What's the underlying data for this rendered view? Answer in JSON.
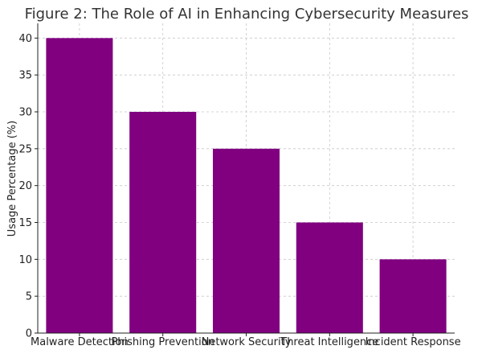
{
  "chart_data": {
    "type": "bar",
    "title": "Figure 2: The Role of AI in Enhancing Cybersecurity Measures",
    "xlabel": "",
    "ylabel": "Usage Percentage (%)",
    "categories": [
      "Malware Detection",
      "Phishing Prevention",
      "Network Security",
      "Threat Intelligence",
      "Incident Response"
    ],
    "values": [
      40,
      30,
      25,
      15,
      10
    ],
    "ylim": [
      0,
      42
    ],
    "yticks": [
      "0",
      "5",
      "10",
      "15",
      "20",
      "25",
      "30",
      "35",
      "40"
    ],
    "ytick_values": [
      0,
      5,
      10,
      15,
      20,
      25,
      30,
      35,
      40
    ],
    "grid": true,
    "bar_color": "#800080"
  }
}
